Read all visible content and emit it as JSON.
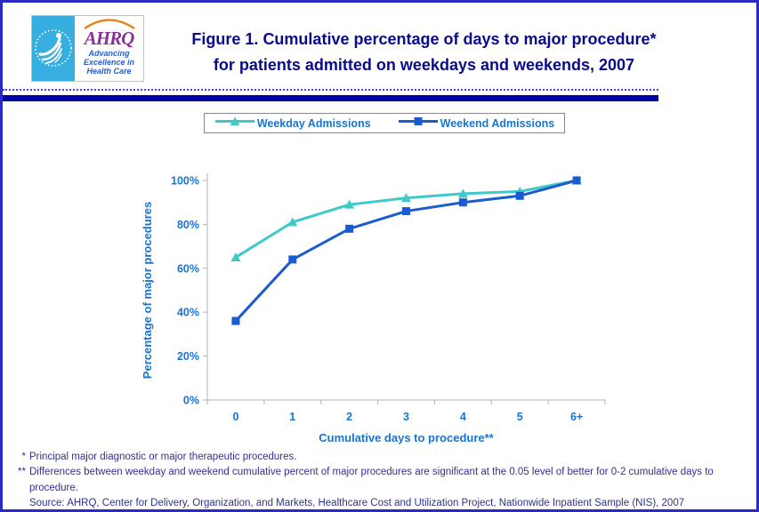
{
  "header": {
    "logo": {
      "ahrq_text": "AHRQ",
      "tagline_line1": "Advancing",
      "tagline_line2": "Excellence in",
      "tagline_line3": "Health Care"
    },
    "title_line1": "Figure 1. Cumulative percentage of days to major procedure*",
    "title_line2": "for patients admitted on weekdays and weekends, 2007"
  },
  "chart_data": {
    "type": "line",
    "categories": [
      "0",
      "1",
      "2",
      "3",
      "4",
      "5",
      "6+"
    ],
    "series": [
      {
        "name": "Weekday Admissions",
        "marker": "triangle",
        "color": "#3FC9C9",
        "values": [
          65,
          81,
          89,
          92,
          94,
          95,
          100
        ]
      },
      {
        "name": "Weekend Admissions",
        "marker": "square",
        "color": "#1A5CD0",
        "values": [
          36,
          64,
          78,
          86,
          90,
          93,
          100
        ]
      }
    ],
    "xlabel": "Cumulative days to procedure**",
    "ylabel": "Percentage of major procedures",
    "ylim": [
      0,
      100
    ],
    "ytick_step": 20,
    "ytick_labels": [
      "0%",
      "20%",
      "40%",
      "60%",
      "80%",
      "100%"
    ],
    "legend_position": "top",
    "grid": false
  },
  "footnotes": [
    {
      "marker": "*",
      "text": "Principal major diagnostic or major therapeutic procedures."
    },
    {
      "marker": "**",
      "text": "Differences between weekday and weekend cumulative percent of major procedures are significant at the 0.05 level of better for 0-2 cumulative days to procedure."
    },
    {
      "marker": "",
      "text": "Source: AHRQ, Center for Delivery, Organization, and Markets, Healthcare Cost and Utilization Project, Nationwide Inpatient Sample (NIS), 2007"
    }
  ],
  "colors": {
    "page_border": "#2B2BC4",
    "rule": "#0000A8",
    "title_text": "#0A0A8C",
    "chart_text": "#1874D2",
    "footnote_text": "#31318F",
    "axis_line": "#B3B3B3",
    "logo_cyan": "#36AEE0",
    "logo_purple": "#8C2F9B",
    "logo_arc_orange": "#E8821E",
    "logo_tagline_blue": "#2B5BC8"
  }
}
